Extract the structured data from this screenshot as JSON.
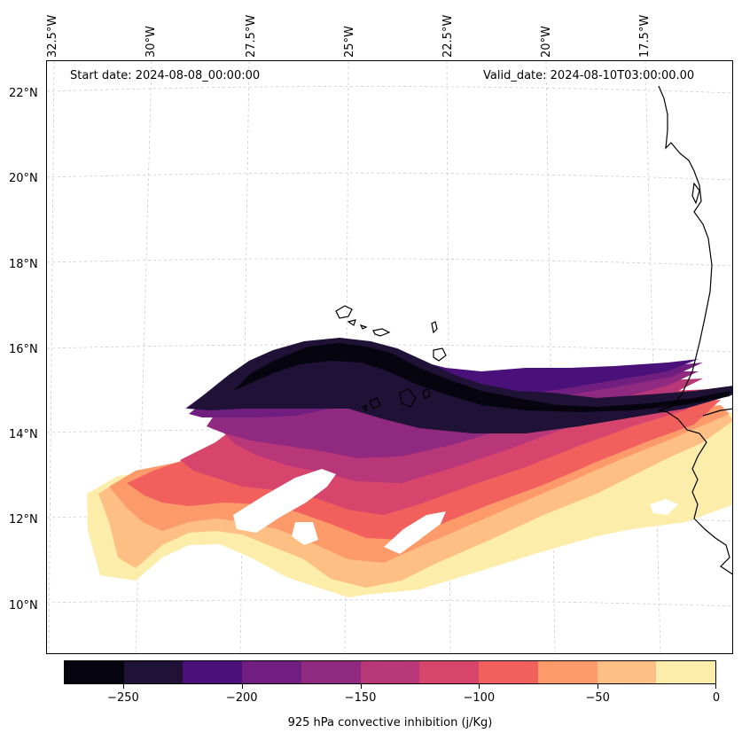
{
  "map": {
    "title_left": "Start date: 2024-08-08_00:00:00",
    "title_right": "Valid_date: 2024-08-10T03:00:00.00",
    "longitude_labels": [
      "32.5°W",
      "30°W",
      "27.5°W",
      "25°W",
      "22.5°W",
      "20°W",
      "17.5°W"
    ],
    "latitude_labels": [
      "22°N",
      "20°N",
      "18°N",
      "16°N",
      "14°N",
      "12°N",
      "10°N"
    ],
    "extent": {
      "lon_min": -32.5,
      "lon_max": -16.0,
      "lat_min": 9.0,
      "lat_max": 22.8
    },
    "gridlines": true,
    "coastline": "West Africa (Western Sahara, Mauritania, Senegal) and Cape Verde islands"
  },
  "colorbar": {
    "label": "925 hPa convective inhibition (j/Kg)",
    "levels": [
      -275,
      -250,
      -225,
      -200,
      -175,
      -150,
      -125,
      -100,
      -75,
      -50,
      -25,
      0
    ],
    "tick_labels": [
      "−250",
      "−200",
      "−150",
      "−100",
      "−50",
      "0"
    ],
    "tick_values": [
      -250,
      -200,
      -150,
      -100,
      -50,
      0
    ],
    "colors": [
      "#05040f",
      "#1f1236",
      "#4b117a",
      "#701f81",
      "#902a81",
      "#b73779",
      "#d8456c",
      "#f1605d",
      "#fd9a6a",
      "#febf84",
      "#fcedaa"
    ]
  }
}
